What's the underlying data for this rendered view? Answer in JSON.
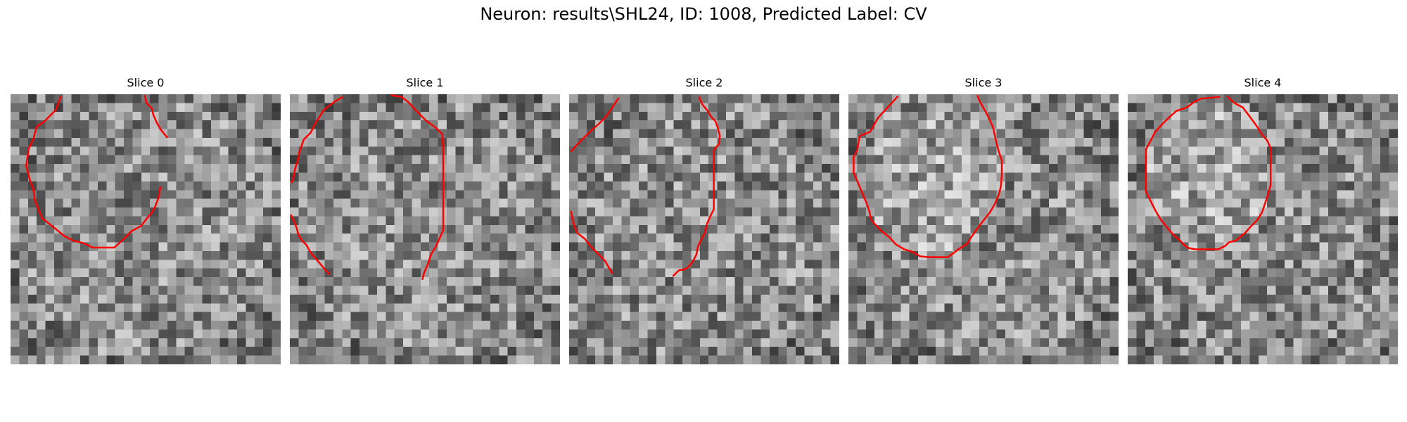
{
  "figure": {
    "title": "Neuron: results\\SHL24, ID: 1008, Predicted Label: CV"
  },
  "image": {
    "colormap": "gray",
    "grid_size": 31,
    "contour_color": "#ff0000"
  },
  "slices": [
    {
      "title": "Slice 0",
      "contours": [
        [
          [
            5.8,
            0.2
          ],
          [
            5.2,
            1.8
          ],
          [
            3.8,
            3.2
          ],
          [
            3.0,
            3.7
          ],
          [
            2.6,
            5.2
          ],
          [
            2.1,
            6.2
          ],
          [
            1.8,
            8.2
          ],
          [
            2.2,
            9.8
          ],
          [
            2.6,
            10.8
          ],
          [
            2.8,
            12.2
          ],
          [
            3.2,
            13.2
          ],
          [
            3.6,
            14.2
          ],
          [
            4.6,
            15.0
          ],
          [
            5.6,
            15.8
          ],
          [
            6.2,
            16.3
          ],
          [
            7.2,
            16.8
          ],
          [
            8.4,
            17.1
          ],
          [
            9.4,
            17.6
          ],
          [
            10.6,
            17.6
          ],
          [
            11.9,
            17.6
          ],
          [
            13.0,
            16.6
          ],
          [
            13.9,
            15.7
          ],
          [
            15.0,
            15.1
          ],
          [
            15.6,
            14.3
          ],
          [
            16.2,
            13.6
          ],
          [
            16.6,
            12.9
          ],
          [
            17.0,
            11.8
          ],
          [
            17.2,
            10.6
          ]
        ],
        [
          [
            15.4,
            0.1
          ],
          [
            15.6,
            1.0
          ],
          [
            16.2,
            1.6
          ],
          [
            16.4,
            2.4
          ],
          [
            16.8,
            3.3
          ],
          [
            17.2,
            4.0
          ],
          [
            17.6,
            4.5
          ],
          [
            18.0,
            5.0
          ]
        ]
      ]
    },
    {
      "title": "Slice 1",
      "contours": [
        [
          [
            6.1,
            0.3
          ],
          [
            5.2,
            0.8
          ],
          [
            3.9,
            1.8
          ],
          [
            2.9,
            3.4
          ],
          [
            2.4,
            4.4
          ],
          [
            1.6,
            5.2
          ],
          [
            1.1,
            6.6
          ],
          [
            0.9,
            7.6
          ],
          [
            0.6,
            8.6
          ],
          [
            0.4,
            9.6
          ],
          [
            0.2,
            10.2
          ]
        ],
        [
          [
            11.6,
            0.1
          ],
          [
            12.8,
            0.3
          ],
          [
            13.6,
            0.9
          ],
          [
            14.5,
            1.9
          ],
          [
            15.6,
            3.0
          ],
          [
            16.7,
            3.8
          ],
          [
            17.5,
            4.6
          ],
          [
            17.6,
            6.2
          ],
          [
            17.6,
            7.4
          ],
          [
            17.6,
            9.4
          ],
          [
            17.6,
            11.6
          ],
          [
            17.6,
            13.6
          ],
          [
            17.6,
            15.6
          ],
          [
            17.2,
            16.5
          ],
          [
            16.8,
            17.4
          ],
          [
            16.2,
            18.4
          ],
          [
            15.8,
            19.6
          ],
          [
            15.4,
            20.5
          ],
          [
            15.2,
            21.3
          ]
        ],
        [
          [
            0.1,
            13.8
          ],
          [
            0.5,
            14.6
          ],
          [
            0.8,
            15.4
          ],
          [
            1.0,
            16.2
          ],
          [
            1.4,
            16.8
          ],
          [
            1.9,
            17.3
          ],
          [
            2.4,
            18.2
          ],
          [
            3.0,
            18.9
          ],
          [
            3.6,
            19.6
          ],
          [
            4.1,
            20.2
          ],
          [
            4.6,
            20.7
          ]
        ]
      ]
    },
    {
      "title": "Slice 2",
      "contours": [
        [
          [
            5.7,
            0.4
          ],
          [
            4.9,
            1.6
          ],
          [
            4.2,
            2.6
          ],
          [
            3.4,
            3.4
          ],
          [
            2.5,
            4.2
          ],
          [
            1.6,
            5.1
          ],
          [
            0.8,
            5.9
          ],
          [
            0.2,
            6.6
          ]
        ],
        [
          [
            14.9,
            0.3
          ],
          [
            15.3,
            1.2
          ],
          [
            15.9,
            1.9
          ],
          [
            16.3,
            2.6
          ],
          [
            16.8,
            3.1
          ],
          [
            17.1,
            4.0
          ],
          [
            17.3,
            4.8
          ],
          [
            17.2,
            5.7
          ],
          [
            16.6,
            6.4
          ],
          [
            16.6,
            7.7
          ],
          [
            16.6,
            9.6
          ],
          [
            16.6,
            11.6
          ],
          [
            16.6,
            13.2
          ],
          [
            16.2,
            14.0
          ],
          [
            15.8,
            14.9
          ],
          [
            15.6,
            15.9
          ],
          [
            15.2,
            16.6
          ],
          [
            14.8,
            17.4
          ],
          [
            14.6,
            18.4
          ],
          [
            14.2,
            19.2
          ],
          [
            13.8,
            19.7
          ],
          [
            13.3,
            20.1
          ],
          [
            12.6,
            20.2
          ],
          [
            12.3,
            20.5
          ],
          [
            11.9,
            20.9
          ]
        ],
        [
          [
            0.2,
            13.4
          ],
          [
            0.5,
            14.8
          ],
          [
            0.9,
            15.9
          ],
          [
            1.8,
            16.6
          ],
          [
            2.6,
            17.6
          ],
          [
            3.4,
            18.4
          ],
          [
            4.1,
            19.1
          ],
          [
            4.5,
            19.8
          ],
          [
            5.0,
            20.6
          ]
        ]
      ]
    },
    {
      "title": "Slice 3",
      "contours": [
        [
          [
            5.7,
            0.2
          ],
          [
            4.7,
            1.3
          ],
          [
            3.4,
            2.7
          ],
          [
            2.5,
            4.3
          ],
          [
            1.3,
            4.8
          ],
          [
            1.0,
            6.4
          ],
          [
            0.6,
            7.2
          ],
          [
            0.6,
            9.0
          ],
          [
            1.2,
            10.4
          ],
          [
            1.6,
            11.4
          ],
          [
            2.0,
            12.3
          ],
          [
            2.4,
            13.4
          ],
          [
            2.6,
            14.4
          ],
          [
            3.2,
            15.1
          ],
          [
            3.9,
            15.8
          ],
          [
            4.7,
            16.4
          ],
          [
            5.4,
            17.2
          ],
          [
            6.4,
            17.8
          ],
          [
            7.4,
            18.1
          ],
          [
            8.2,
            18.6
          ],
          [
            9.2,
            18.7
          ],
          [
            10.2,
            18.7
          ],
          [
            11.4,
            18.7
          ],
          [
            12.1,
            18.2
          ],
          [
            12.6,
            17.8
          ],
          [
            13.6,
            17.2
          ],
          [
            14.1,
            16.4
          ],
          [
            14.8,
            15.4
          ],
          [
            15.4,
            14.6
          ],
          [
            16.2,
            13.6
          ],
          [
            16.8,
            12.6
          ],
          [
            17.3,
            11.4
          ],
          [
            17.5,
            10.5
          ],
          [
            17.6,
            9.3
          ],
          [
            17.6,
            7.6
          ],
          [
            17.2,
            6.4
          ],
          [
            16.9,
            5.2
          ],
          [
            16.6,
            3.8
          ],
          [
            16.2,
            2.9
          ],
          [
            15.8,
            2.1
          ],
          [
            15.4,
            1.4
          ],
          [
            15.0,
            0.7
          ],
          [
            14.8,
            0.1
          ]
        ]
      ]
    },
    {
      "title": "Slice 4",
      "contours": [
        [
          [
            10.6,
            0.3
          ],
          [
            9.6,
            0.4
          ],
          [
            8.4,
            0.5
          ],
          [
            7.6,
            0.9
          ],
          [
            6.8,
            1.5
          ],
          [
            5.6,
            1.9
          ],
          [
            4.7,
            2.7
          ],
          [
            3.8,
            3.6
          ],
          [
            3.1,
            4.4
          ],
          [
            2.6,
            5.4
          ],
          [
            2.1,
            6.3
          ],
          [
            2.1,
            7.6
          ],
          [
            2.1,
            9.4
          ],
          [
            2.1,
            11.2
          ],
          [
            2.6,
            12.2
          ],
          [
            3.2,
            13.4
          ],
          [
            3.8,
            14.4
          ],
          [
            4.6,
            15.4
          ],
          [
            5.2,
            16.1
          ],
          [
            6.1,
            16.9
          ],
          [
            6.8,
            17.6
          ],
          [
            7.7,
            17.8
          ],
          [
            9.4,
            17.8
          ],
          [
            10.4,
            17.8
          ],
          [
            11.2,
            17.4
          ],
          [
            11.6,
            17.0
          ],
          [
            12.4,
            16.8
          ],
          [
            13.4,
            16.0
          ],
          [
            14.1,
            15.2
          ],
          [
            14.8,
            14.5
          ],
          [
            15.4,
            13.6
          ],
          [
            15.8,
            12.4
          ],
          [
            16.1,
            11.5
          ],
          [
            16.4,
            10.4
          ],
          [
            16.4,
            8.4
          ],
          [
            16.4,
            6.2
          ],
          [
            16.0,
            5.3
          ],
          [
            15.4,
            4.6
          ],
          [
            14.9,
            3.8
          ],
          [
            14.4,
            3.1
          ],
          [
            13.8,
            2.3
          ],
          [
            13.2,
            1.5
          ],
          [
            12.4,
            1.1
          ],
          [
            11.9,
            0.7
          ],
          [
            11.4,
            0.2
          ]
        ]
      ]
    }
  ]
}
